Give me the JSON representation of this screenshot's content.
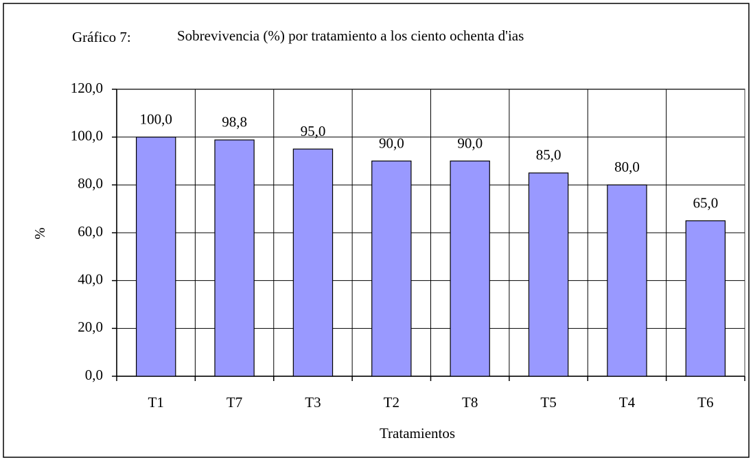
{
  "chart_data": {
    "type": "bar",
    "figure_label": "Gráfico 7:",
    "title": "Sobrevivencia (%) por tratamiento a los ciento ochenta d'ias",
    "x_label": "Tratamientos",
    "y_label": "%",
    "categories": [
      "T1",
      "T7",
      "T3",
      "T2",
      "T8",
      "T5",
      "T4",
      "T6"
    ],
    "values": [
      100.0,
      98.8,
      95.0,
      90.0,
      90.0,
      85.0,
      80.0,
      65.0
    ],
    "value_labels": [
      "100,0",
      "98,8",
      "95,0",
      "90,0",
      "90,0",
      "85,0",
      "80,0",
      "65,0"
    ],
    "color": "#9999ff",
    "ylim": [
      0,
      120
    ],
    "yticks": [
      {
        "value": 0,
        "label": "0,0"
      },
      {
        "value": 20,
        "label": "20,0"
      },
      {
        "value": 40,
        "label": "40,0"
      },
      {
        "value": 60,
        "label": "60,0"
      },
      {
        "value": 80,
        "label": "80,0"
      },
      {
        "value": 100,
        "label": "100,0"
      },
      {
        "value": 120,
        "label": "120,0"
      }
    ],
    "grid": true
  }
}
